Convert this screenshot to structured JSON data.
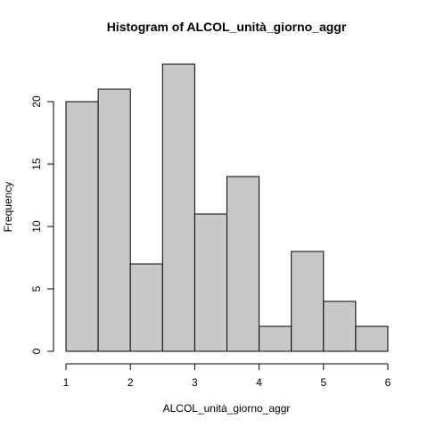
{
  "chart_data": {
    "type": "bar",
    "title": "Histogram of ALCOL_unità_giorno_aggr",
    "xlabel": "ALCOL_unità_giorno_aggr",
    "ylabel": "Frequency",
    "bins": [
      {
        "start": 1.0,
        "end": 1.5,
        "count": 20
      },
      {
        "start": 1.5,
        "end": 2.0,
        "count": 21
      },
      {
        "start": 2.0,
        "end": 2.5,
        "count": 7
      },
      {
        "start": 2.5,
        "end": 3.0,
        "count": 23
      },
      {
        "start": 3.0,
        "end": 3.5,
        "count": 11
      },
      {
        "start": 3.5,
        "end": 4.0,
        "count": 14
      },
      {
        "start": 4.0,
        "end": 4.5,
        "count": 2
      },
      {
        "start": 4.5,
        "end": 5.0,
        "count": 8
      },
      {
        "start": 5.0,
        "end": 5.5,
        "count": 4
      },
      {
        "start": 5.5,
        "end": 6.0,
        "count": 2
      }
    ],
    "xlim": [
      1,
      6
    ],
    "ylim": [
      0,
      23
    ],
    "xticks": [
      1,
      2,
      3,
      4,
      5,
      6
    ],
    "yticks": [
      0,
      5,
      10,
      15,
      20
    ],
    "bar_color": "#c8c8c8",
    "grid": false,
    "legend": "none"
  }
}
